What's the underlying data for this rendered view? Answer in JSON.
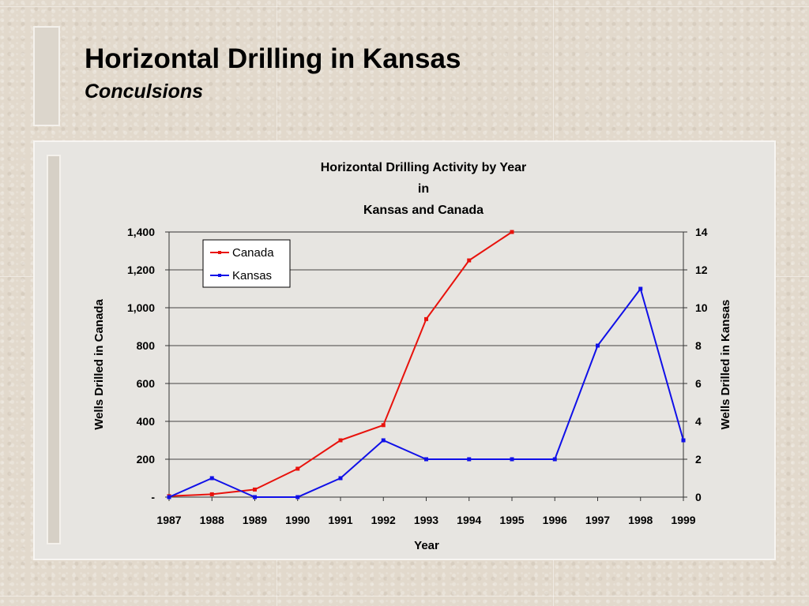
{
  "slide": {
    "title": "Horizontal Drilling in Kansas",
    "subtitle": "Conculsions"
  },
  "chart_data": {
    "type": "line",
    "title_lines": [
      "Horizontal Drilling Activity by Year",
      "in",
      "Kansas and Canada"
    ],
    "xlabel": "Year",
    "ylabel_left": "Wells Drilled in Canada",
    "ylabel_right": "Wells Drilled in Kansas",
    "categories": [
      "1987",
      "1988",
      "1989",
      "1990",
      "1991",
      "1992",
      "1993",
      "1994",
      "1995",
      "1996",
      "1997",
      "1998",
      "1999"
    ],
    "ylim_left": [
      0,
      1400
    ],
    "ylim_right": [
      0,
      14
    ],
    "yticks_left": [
      "-",
      "200",
      "400",
      "600",
      "800",
      "1,000",
      "1,200",
      "1,400"
    ],
    "yticks_right": [
      "0",
      "2",
      "4",
      "6",
      "8",
      "10",
      "12",
      "14"
    ],
    "grid": true,
    "legend_position": "top-left",
    "series": [
      {
        "name": "Canada",
        "axis": "left",
        "color": "#e8120c",
        "values": [
          5,
          15,
          40,
          150,
          300,
          380,
          940,
          1250,
          1400,
          null,
          null,
          null,
          null
        ]
      },
      {
        "name": "Kansas",
        "axis": "right",
        "color": "#1010e8",
        "values": [
          0,
          1,
          0,
          0,
          1,
          3,
          2,
          2,
          2,
          2,
          8,
          11,
          3
        ]
      }
    ]
  }
}
